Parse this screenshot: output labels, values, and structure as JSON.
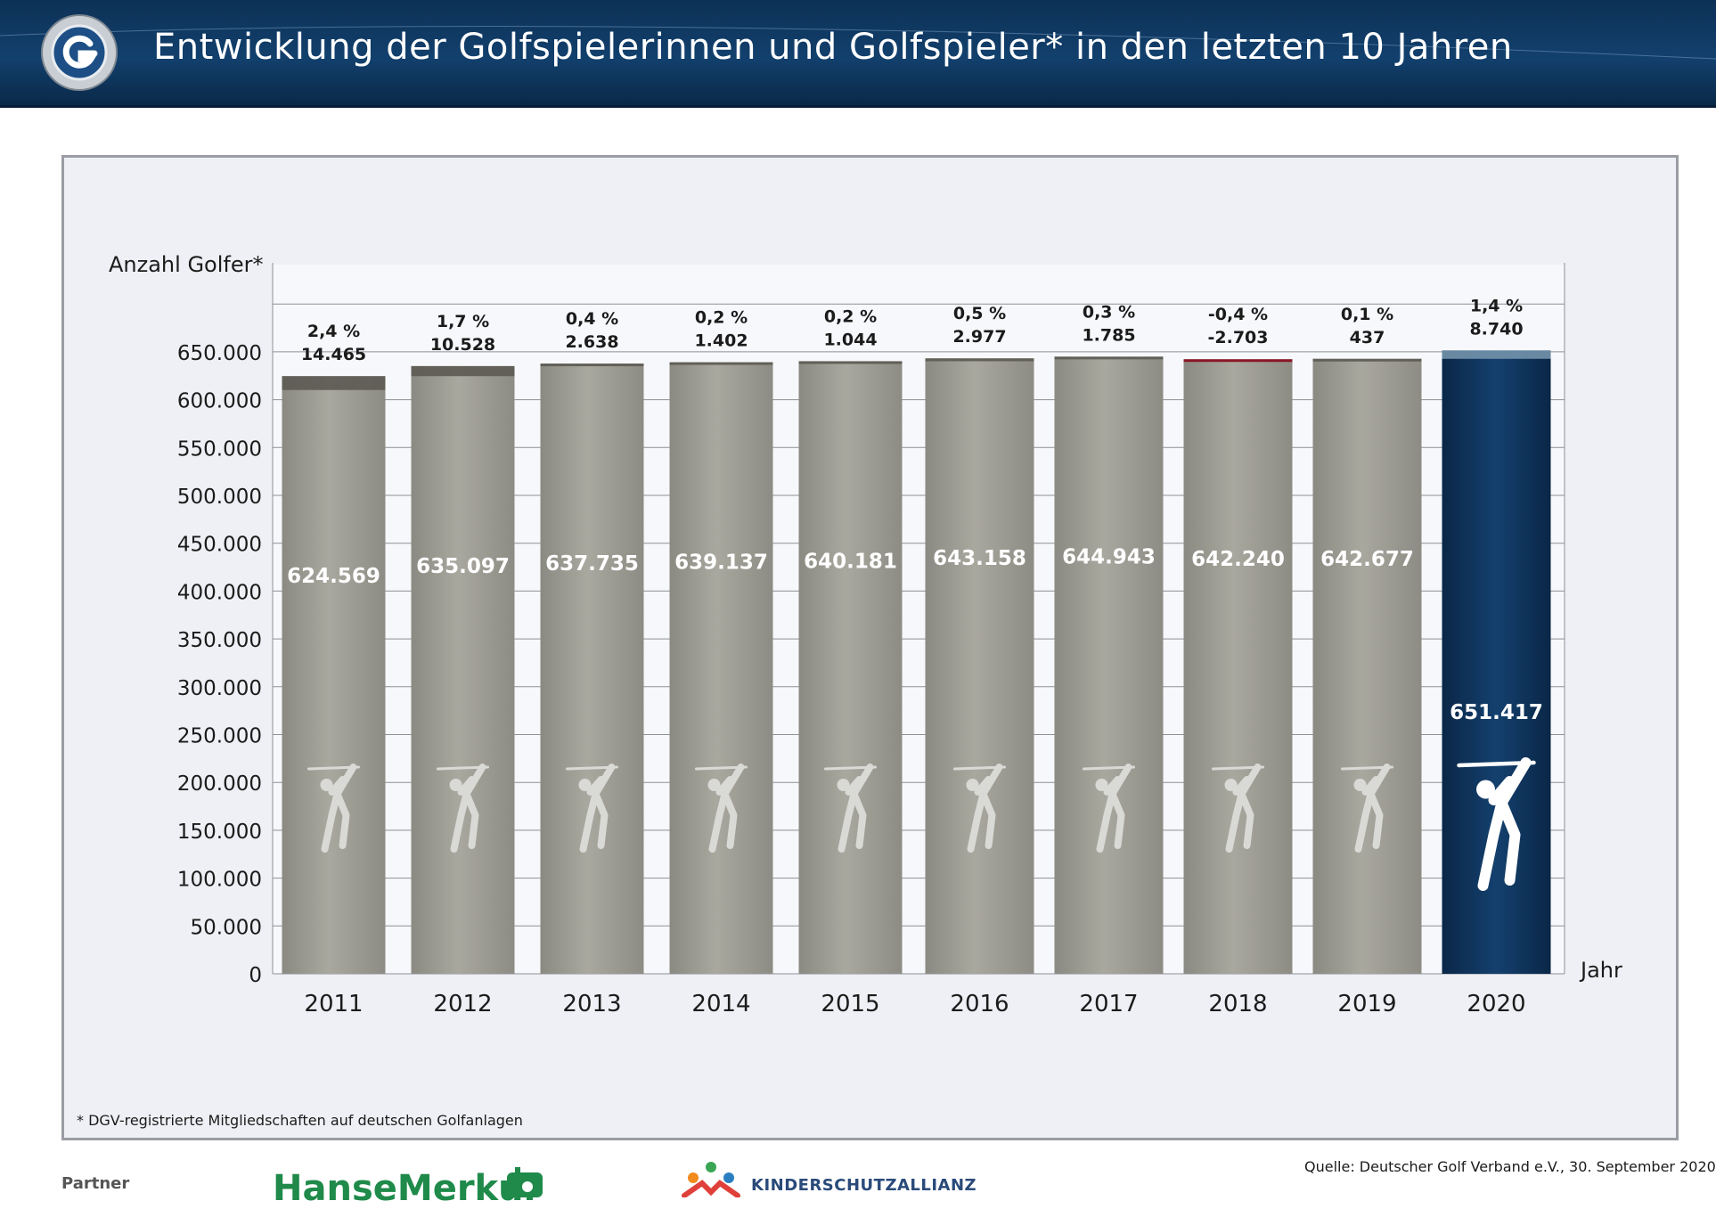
{
  "header": {
    "title": "Entwicklung der Golfspielerinnen und Golfspieler* in den letzten 10 Jahren"
  },
  "chart_data": {
    "type": "bar",
    "ylabel": "Anzahl Golfer*",
    "xlabel": "Jahr",
    "ylim": [
      0,
      750000
    ],
    "yticks": [
      "0",
      "50.000",
      "100.000",
      "150.000",
      "200.000",
      "250.000",
      "300.000",
      "350.000",
      "400.000",
      "450.000",
      "500.000",
      "550.000",
      "600.000",
      "650.000"
    ],
    "categories": [
      "2011",
      "2012",
      "2013",
      "2014",
      "2015",
      "2016",
      "2017",
      "2018",
      "2019",
      "2020"
    ],
    "values": [
      624569,
      635097,
      637735,
      639137,
      640181,
      643158,
      644943,
      642240,
      642677,
      651417
    ],
    "value_labels": [
      "624.569",
      "635.097",
      "637.735",
      "639.137",
      "640.181",
      "643.158",
      "644.943",
      "642.240",
      "642.677",
      "651.417"
    ],
    "changes": [
      14465,
      10528,
      2638,
      1402,
      1044,
      2977,
      1785,
      -2703,
      437,
      8740
    ],
    "change_labels": [
      "14.465",
      "10.528",
      "2.638",
      "1.402",
      "1.044",
      "2.977",
      "1.785",
      "-2.703",
      "437",
      "8.740"
    ],
    "percent_labels": [
      "2,4 %",
      "1,7 %",
      "0,4 %",
      "0,2 %",
      "0,2 %",
      "0,5 %",
      "0,3 %",
      "-0,4 %",
      "0,1 %",
      "1,4 %"
    ],
    "grid": true,
    "legend": "none",
    "colors": {
      "bar": "#9c9b92",
      "bar_highlight": "#0f3560",
      "increase_cap": "#5f5d55",
      "decrease_cap": "#8a1020",
      "highlight_cap": "#6f8ea8"
    }
  },
  "footnote": "*  DGV-registrierte Mitgliedschaften auf deutschen Golfanlagen",
  "source": "Quelle: Deutscher Golf Verband e.V., 30. September 2020",
  "partners": {
    "label": "Partner",
    "hansemerkur": "HanseMerkur",
    "kinderschutz": "KINDERSCHUTZALLIANZ"
  }
}
